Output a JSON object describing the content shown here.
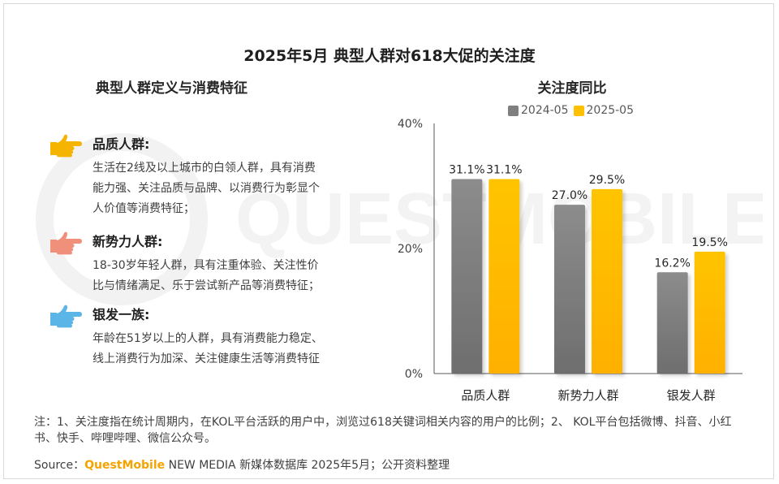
{
  "main_title": "2025年5月 典型人群对618大促的关注度",
  "left_panel": {
    "title": "典型人群定义与消费特征",
    "groups": [
      {
        "name": "品质人群:",
        "lines": [
          "生活在2线及以上城市的白领人群，具有消费",
          "能力强、关注品质与品牌、以消费行为彰显个",
          "人价值等消费特征；"
        ],
        "hand_color": "#f5b400"
      },
      {
        "name": "新势力人群:",
        "lines": [
          "18-30岁年轻人群，具有注重体验、关注性价",
          "比与情绪满足、乐于尝试新产品等消费特征；"
        ],
        "hand_color": "#f0907a"
      },
      {
        "name": "银发一族:",
        "lines": [
          "年龄在51岁以上的人群，具有消费能力稳定、",
          "线上消费行为加深、关注健康生活等消费特征"
        ],
        "hand_color": "#5bb5e6"
      }
    ]
  },
  "watermark_text": "QUESTMOBILE",
  "chart_data": {
    "type": "bar",
    "title": "关注度同比",
    "categories": [
      "品质人群",
      "新势力人群",
      "银发人群"
    ],
    "series": [
      {
        "name": "2024-05",
        "values": [
          31.1,
          27.0,
          16.2
        ],
        "labels": [
          "31.1%",
          "27.0%",
          "16.2%"
        ],
        "color": "#7f7f7f"
      },
      {
        "name": "2025-05",
        "values": [
          31.1,
          29.5,
          19.5
        ],
        "labels": [
          "31.1%",
          "29.5%",
          "19.5%"
        ],
        "color": "#ffc000"
      }
    ],
    "yticks": [
      "0%",
      "20%",
      "40%"
    ],
    "ytick_values": [
      0,
      20,
      40
    ],
    "ylim": [
      0,
      40
    ],
    "legend_position": "top",
    "grid": false
  },
  "note": "注：1、关注度指在统计周期内，在KOL平台活跃的用户中，浏览过618关键词相关内容的用户的比例；2、 KOL平台包括微博、抖音、小红书、快手、哔哩哔哩、微信公众号。",
  "source": {
    "prefix": "Source：",
    "brand": "QuestMobile",
    "rest": " NEW MEDIA 新媒体数据库 2025年5月；公开资料整理"
  }
}
